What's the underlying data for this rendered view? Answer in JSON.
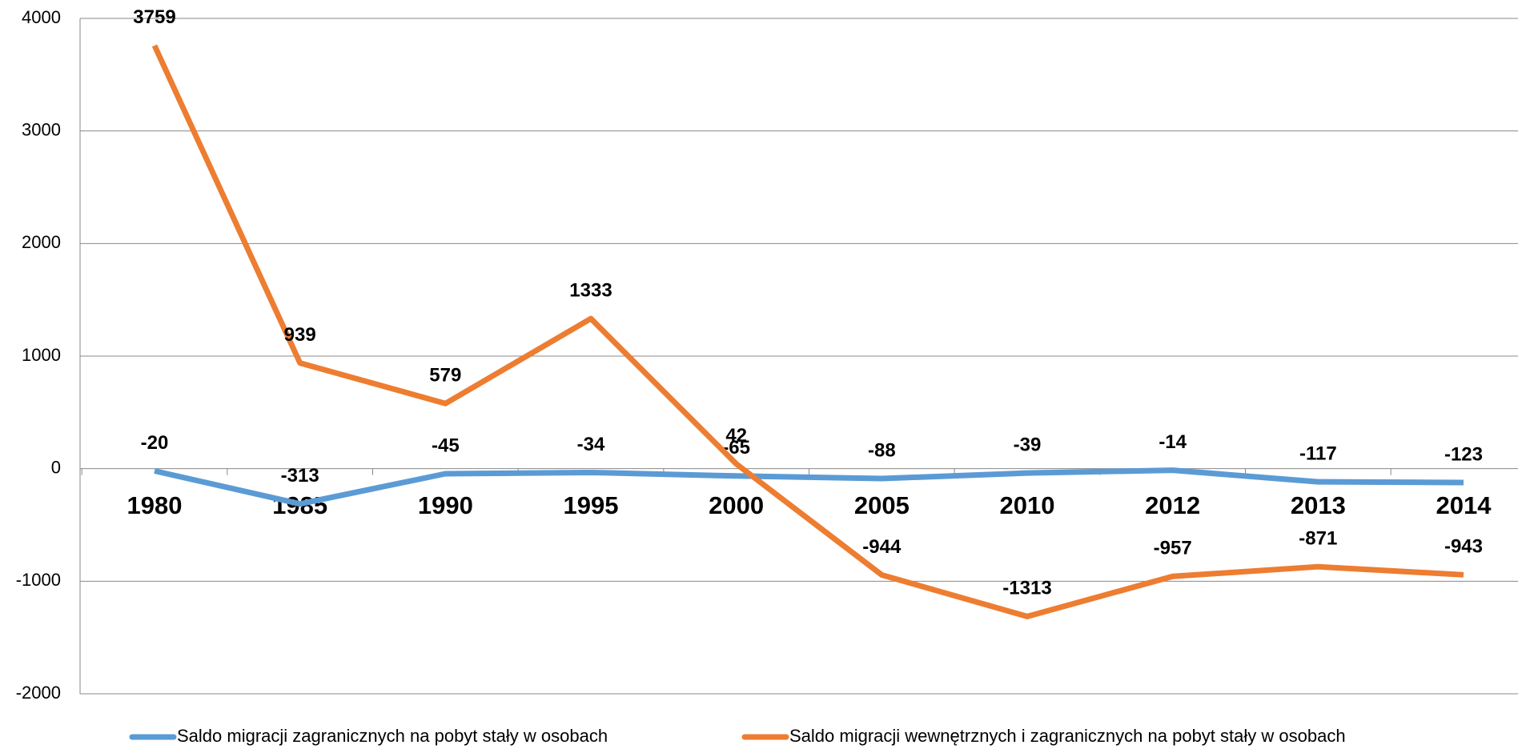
{
  "chart_data": {
    "type": "line",
    "categories": [
      "1980",
      "1985",
      "1990",
      "1995",
      "2000",
      "2005",
      "2010",
      "2012",
      "2013",
      "2014"
    ],
    "series": [
      {
        "name": "Saldo migracji zagranicznych na pobyt stały w osobach",
        "color": "#5b9bd5",
        "values": [
          -20,
          -313,
          -45,
          -34,
          -65,
          -88,
          -39,
          -14,
          -117,
          -123
        ]
      },
      {
        "name": "Saldo migracji wewnętrznych i zagranicznych na pobyt stały w osobach",
        "color": "#ed7d31",
        "values": [
          3759,
          939,
          579,
          1333,
          42,
          -944,
          -1313,
          -957,
          -871,
          -943
        ]
      }
    ],
    "ylim": [
      -2000,
      4000
    ],
    "yticks": [
      -2000,
      -1000,
      0,
      1000,
      2000,
      3000,
      4000
    ],
    "grid": true,
    "legend": "bottom"
  }
}
